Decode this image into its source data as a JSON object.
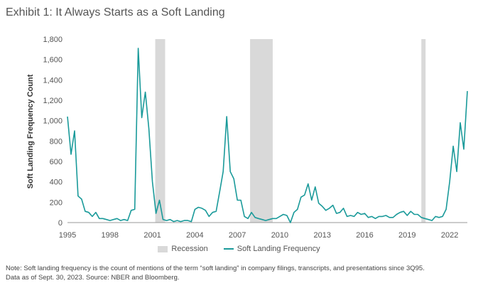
{
  "title": "Exhibit 1: It Always Starts as a Soft Landing",
  "note_line1": "Note: Soft landing frequency is the count of mentions of the term “soft landing” in company filings, transcripts, and presentations since 3Q95.",
  "note_line2": "Data as of Sept. 30, 2023. Source: NBER and Bloomberg.",
  "colors": {
    "line": "#1a9a9a",
    "recession": "#d9d9d9"
  },
  "chart_data": {
    "type": "line",
    "title": "Exhibit 1: It Always Starts as a Soft Landing",
    "ylabel": "Soft Landing Frequency Count",
    "xlabel": "",
    "ylim": [
      0,
      1800
    ],
    "xlim": [
      1995,
      2023.25
    ],
    "y_ticks": [
      "0",
      "200",
      "400",
      "600",
      "800",
      "1,000",
      "1,200",
      "1,400",
      "1,600",
      "1,800"
    ],
    "y_tick_values": [
      0,
      200,
      400,
      600,
      800,
      1000,
      1200,
      1400,
      1600,
      1800
    ],
    "x_ticks": [
      "1995",
      "1998",
      "2001",
      "2004",
      "2007",
      "2010",
      "2013",
      "2016",
      "2019",
      "2022"
    ],
    "x_tick_values": [
      1995,
      1998,
      2001,
      2004,
      2007,
      2010,
      2013,
      2016,
      2019,
      2022
    ],
    "grid": false,
    "legend_position": "bottom",
    "legend": [
      "Recession",
      "Soft Landing Frequency"
    ],
    "recessions": [
      {
        "start": 2001.2,
        "end": 2001.9
      },
      {
        "start": 2007.9,
        "end": 2009.5
      },
      {
        "start": 2020.0,
        "end": 2020.3
      }
    ],
    "series": [
      {
        "name": "Soft Landing Frequency",
        "x": [
          1995.0,
          1995.25,
          1995.5,
          1995.75,
          1996.0,
          1996.25,
          1996.5,
          1996.75,
          1997.0,
          1997.25,
          1997.5,
          1997.75,
          1998.0,
          1998.25,
          1998.5,
          1998.75,
          1999.0,
          1999.25,
          1999.5,
          1999.75,
          2000.0,
          2000.25,
          2000.5,
          2000.75,
          2001.0,
          2001.25,
          2001.5,
          2001.75,
          2002.0,
          2002.25,
          2002.5,
          2002.75,
          2003.0,
          2003.25,
          2003.5,
          2003.75,
          2004.0,
          2004.25,
          2004.5,
          2004.75,
          2005.0,
          2005.25,
          2005.5,
          2005.75,
          2006.0,
          2006.25,
          2006.5,
          2006.75,
          2007.0,
          2007.25,
          2007.5,
          2007.75,
          2008.0,
          2008.25,
          2008.5,
          2008.75,
          2009.0,
          2009.25,
          2009.5,
          2009.75,
          2010.0,
          2010.25,
          2010.5,
          2010.75,
          2011.0,
          2011.25,
          2011.5,
          2011.75,
          2012.0,
          2012.25,
          2012.5,
          2012.75,
          2013.0,
          2013.25,
          2013.5,
          2013.75,
          2014.0,
          2014.25,
          2014.5,
          2014.75,
          2015.0,
          2015.25,
          2015.5,
          2015.75,
          2016.0,
          2016.25,
          2016.5,
          2016.75,
          2017.0,
          2017.25,
          2017.5,
          2017.75,
          2018.0,
          2018.25,
          2018.5,
          2018.75,
          2019.0,
          2019.25,
          2019.5,
          2019.75,
          2020.0,
          2020.25,
          2020.5,
          2020.75,
          2021.0,
          2021.25,
          2021.5,
          2021.75,
          2022.0,
          2022.25,
          2022.5,
          2022.75,
          2023.0,
          2023.25
        ],
        "values": [
          1040,
          670,
          900,
          260,
          230,
          110,
          100,
          60,
          100,
          40,
          40,
          30,
          20,
          30,
          40,
          20,
          30,
          20,
          120,
          130,
          1710,
          1030,
          1280,
          920,
          400,
          90,
          220,
          30,
          20,
          30,
          10,
          20,
          10,
          20,
          20,
          10,
          130,
          150,
          140,
          120,
          60,
          100,
          110,
          300,
          500,
          1040,
          500,
          430,
          220,
          220,
          60,
          40,
          100,
          50,
          40,
          30,
          20,
          30,
          40,
          40,
          60,
          80,
          70,
          0,
          100,
          130,
          250,
          270,
          380,
          220,
          350,
          190,
          160,
          120,
          140,
          170,
          90,
          100,
          140,
          60,
          70,
          60,
          100,
          80,
          90,
          50,
          60,
          40,
          60,
          60,
          70,
          50,
          50,
          80,
          100,
          110,
          70,
          110,
          80,
          80,
          50,
          40,
          30,
          20,
          60,
          50,
          60,
          130,
          400,
          750,
          500,
          980,
          720,
          1290
        ]
      }
    ]
  }
}
